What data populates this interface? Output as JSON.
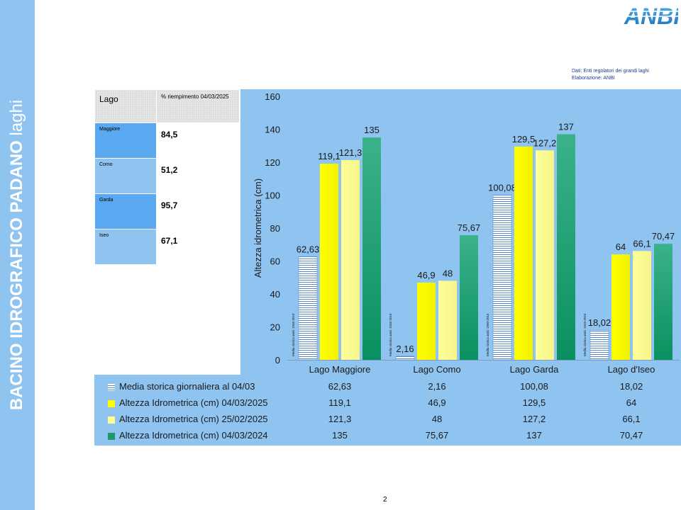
{
  "sidebar": {
    "title_bold": "BACINO IDROGRAFICO PADANO",
    "title_light": " laghi"
  },
  "logo": {
    "text": "ANBI"
  },
  "source": {
    "line1": "Dati: Enti regolatori dei grandi laghi",
    "line2": "Elaborazione: ANBI"
  },
  "fill_table": {
    "header": {
      "lake": "Lago",
      "fill": "% riempimento 04/03/2025"
    },
    "rows": [
      {
        "lake": "Maggiore",
        "fill": "84,5"
      },
      {
        "lake": "Como",
        "fill": "51,2"
      },
      {
        "lake": "Garda",
        "fill": "95,7"
      },
      {
        "lake": "Iseo",
        "fill": "67,1"
      }
    ]
  },
  "page_number": "2",
  "colors": {
    "series1": "#ffffff",
    "series2": "#ffff00",
    "series3": "#ffff99",
    "series4": "#1d9a6c",
    "panel": "#8fc3f0"
  },
  "chart_data": {
    "type": "bar",
    "ylabel": "Altezza idrometrica (cm)",
    "ylim": [
      0,
      160
    ],
    "yticks": [
      0,
      20,
      40,
      60,
      80,
      100,
      120,
      140,
      160
    ],
    "categories": [
      "Lago Maggiore",
      "Lago Como",
      "Lago Garda",
      "Lago d'Iseo"
    ],
    "bar_notes": [
      "Media storica anni: 1946-2018",
      "Media storica anni: 1946-2018",
      "Media storica anni: 1950-2015",
      "Media storica anni: 1933-2018"
    ],
    "series": [
      {
        "name": "Media storica  giornaliera al 04/03",
        "values": [
          62.63,
          2.16,
          100.08,
          18.02
        ],
        "labels": [
          "62,63",
          "2,16",
          "100,08",
          "18,02"
        ]
      },
      {
        "name": "Altezza Idrometrica (cm) 04/03/2025",
        "values": [
          119.1,
          46.9,
          129.5,
          64
        ],
        "labels": [
          "119,1",
          "46,9",
          "129,5",
          "64"
        ]
      },
      {
        "name": "Altezza Idrometrica (cm) 25/02/2025",
        "values": [
          121.3,
          48,
          127.2,
          66.1
        ],
        "labels": [
          "121,3",
          "48",
          "127,2",
          "66,1"
        ]
      },
      {
        "name": "Altezza Idrometrica (cm) 04/03/2024",
        "values": [
          135,
          75.67,
          137,
          70.47
        ],
        "labels": [
          "135",
          "75,67",
          "137",
          "70,47"
        ]
      }
    ],
    "legend": "data-table-below",
    "grid": false
  }
}
